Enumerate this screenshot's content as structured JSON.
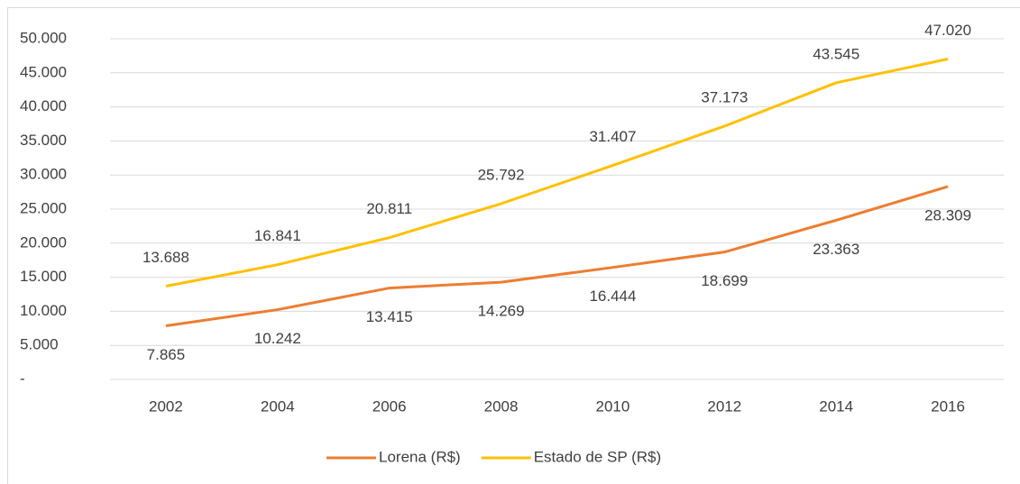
{
  "chart_data": {
    "type": "line",
    "categories": [
      "2002",
      "2004",
      "2006",
      "2008",
      "2010",
      "2012",
      "2014",
      "2016"
    ],
    "series": [
      {
        "name": "Lorena (R$)",
        "color": "#ed7d31",
        "values": [
          7865,
          10242,
          13415,
          14269,
          16444,
          18699,
          23363,
          28309
        ],
        "value_labels": [
          "7.865",
          "10.242",
          "13.415",
          "14.269",
          "16.444",
          "18.699",
          "23.363",
          "28.309"
        ]
      },
      {
        "name": "Estado de SP (R$)",
        "color": "#ffc000",
        "values": [
          13688,
          16841,
          20811,
          25792,
          31407,
          37173,
          43545,
          47020
        ],
        "value_labels": [
          "13.688",
          "16.841",
          "20.811",
          "25.792",
          "31.407",
          "37.173",
          "43.545",
          "47.020"
        ]
      }
    ],
    "ylim": [
      0,
      50000
    ],
    "yticks": [
      {
        "value": 0,
        "label": "-"
      },
      {
        "value": 5000,
        "label": "5.000"
      },
      {
        "value": 10000,
        "label": "10.000"
      },
      {
        "value": 15000,
        "label": "15.000"
      },
      {
        "value": 20000,
        "label": "20.000"
      },
      {
        "value": 25000,
        "label": "25.000"
      },
      {
        "value": 30000,
        "label": "30.000"
      },
      {
        "value": 35000,
        "label": "35.000"
      },
      {
        "value": 40000,
        "label": "40.000"
      },
      {
        "value": 45000,
        "label": "45.000"
      },
      {
        "value": 50000,
        "label": "50.000"
      }
    ],
    "grid": true,
    "legend": "bottom"
  }
}
